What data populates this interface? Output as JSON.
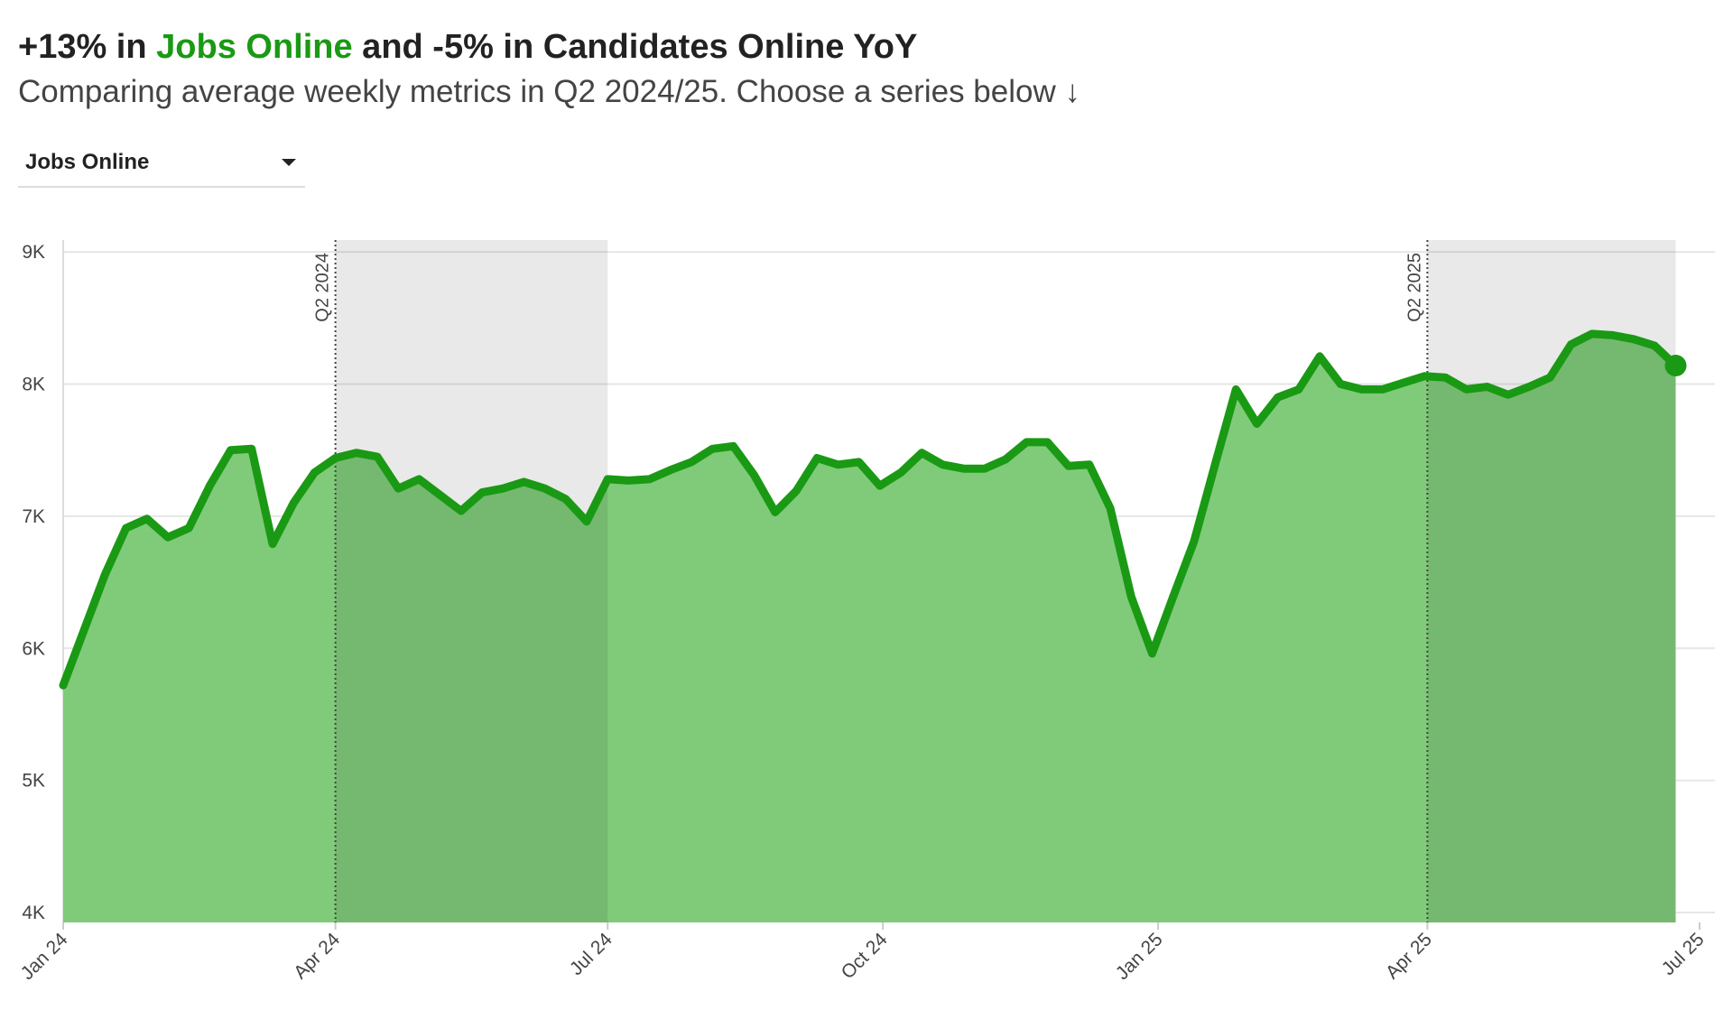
{
  "selector": {
    "selected": "Jobs Online"
  },
  "chart_data": {
    "type": "area",
    "title": [
      {
        "text": "+13% in "
      },
      {
        "text": "Jobs Online",
        "color": "#1a9a14"
      },
      {
        "text": " and -5% in Candidates Online YoY"
      }
    ],
    "subtitle": "Comparing average weekly metrics in Q2 2024/25. Choose a series below ↓",
    "x": [
      "2024-01-01",
      "2024-01-08",
      "2024-01-15",
      "2024-01-22",
      "2024-01-29",
      "2024-02-05",
      "2024-02-12",
      "2024-02-19",
      "2024-02-26",
      "2024-03-04",
      "2024-03-11",
      "2024-03-18",
      "2024-03-25",
      "2024-04-01",
      "2024-04-08",
      "2024-04-15",
      "2024-04-22",
      "2024-04-29",
      "2024-05-06",
      "2024-05-13",
      "2024-05-20",
      "2024-05-27",
      "2024-06-03",
      "2024-06-10",
      "2024-06-17",
      "2024-06-24",
      "2024-07-01",
      "2024-07-08",
      "2024-07-15",
      "2024-07-22",
      "2024-07-29",
      "2024-08-05",
      "2024-08-12",
      "2024-08-19",
      "2024-08-26",
      "2024-09-02",
      "2024-09-09",
      "2024-09-16",
      "2024-09-23",
      "2024-09-30",
      "2024-10-07",
      "2024-10-14",
      "2024-10-21",
      "2024-10-28",
      "2024-11-04",
      "2024-11-11",
      "2024-11-18",
      "2024-11-25",
      "2024-12-02",
      "2024-12-09",
      "2024-12-16",
      "2024-12-23",
      "2024-12-30",
      "2025-01-06",
      "2025-01-13",
      "2025-01-20",
      "2025-01-27",
      "2025-02-03",
      "2025-02-10",
      "2025-02-17",
      "2025-02-24",
      "2025-03-03",
      "2025-03-10",
      "2025-03-17",
      "2025-03-24",
      "2025-03-31",
      "2025-04-07",
      "2025-04-14",
      "2025-04-21",
      "2025-04-28",
      "2025-05-05",
      "2025-05-12",
      "2025-05-19",
      "2025-05-26",
      "2025-06-02",
      "2025-06-09",
      "2025-06-16",
      "2025-06-23"
    ],
    "series": [
      {
        "name": "Jobs Online",
        "color": "#1a9a14",
        "fill": "#7fcb7a",
        "values": [
          5720,
          6140,
          6560,
          6910,
          6980,
          6840,
          6910,
          7230,
          7500,
          7510,
          6790,
          7100,
          7330,
          7440,
          7480,
          7450,
          7210,
          7280,
          7160,
          7040,
          7180,
          7210,
          7260,
          7210,
          7130,
          6960,
          7280,
          7270,
          7280,
          7350,
          7410,
          7510,
          7530,
          7310,
          7030,
          7190,
          7440,
          7390,
          7410,
          7230,
          7330,
          7480,
          7390,
          7360,
          7360,
          7430,
          7560,
          7560,
          7380,
          7390,
          7060,
          6390,
          5960,
          6390,
          6810,
          7390,
          7960,
          7700,
          7900,
          7960,
          8210,
          8000,
          7960,
          7960,
          8010,
          8060,
          8050,
          7960,
          7980,
          7920,
          7980,
          8050,
          8300,
          8380,
          8370,
          8340,
          8290,
          8140
        ]
      }
    ],
    "xlim": [
      "2024-01-01",
      "2025-07-01"
    ],
    "xticks": [
      {
        "value": "2024-01-01",
        "label": "Jan 24"
      },
      {
        "value": "2024-04-01",
        "label": "Apr 24"
      },
      {
        "value": "2024-07-01",
        "label": "Jul 24"
      },
      {
        "value": "2024-10-01",
        "label": "Oct 24"
      },
      {
        "value": "2025-01-01",
        "label": "Jan 25"
      },
      {
        "value": "2025-04-01",
        "label": "Apr 25"
      },
      {
        "value": "2025-07-01",
        "label": "Jul 25"
      }
    ],
    "ylim": [
      3925,
      9090
    ],
    "yticks": [
      {
        "value": 4000,
        "label": "4K"
      },
      {
        "value": 5000,
        "label": "5K"
      },
      {
        "value": 6000,
        "label": "6K"
      },
      {
        "value": 7000,
        "label": "7K"
      },
      {
        "value": 8000,
        "label": "8K"
      },
      {
        "value": 9000,
        "label": "9K"
      }
    ],
    "grid": true,
    "bands": [
      {
        "label": "Q2 2024",
        "start": "2024-04-01",
        "end": "2024-07-01"
      },
      {
        "label": "Q2 2025",
        "start": "2025-04-01",
        "end": "2025-06-23"
      }
    ]
  }
}
